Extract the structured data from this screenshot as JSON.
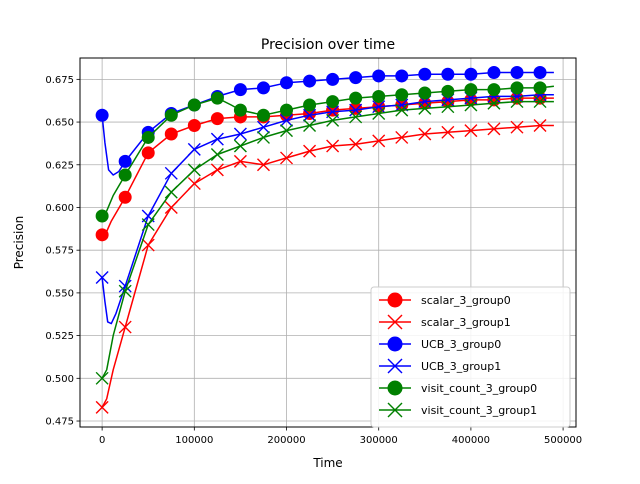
{
  "chart_data": {
    "type": "line",
    "title": "Precision over time",
    "xlabel": "Time",
    "ylabel": "Precision",
    "xlim": [
      -24000,
      514000
    ],
    "ylim": [
      0.4715,
      0.6875
    ],
    "xticks": [
      0,
      100000,
      200000,
      300000,
      400000,
      500000
    ],
    "xtick_labels": [
      "0",
      "100000",
      "200000",
      "300000",
      "400000",
      "500000"
    ],
    "yticks": [
      0.475,
      0.5,
      0.525,
      0.55,
      0.575,
      0.6,
      0.625,
      0.65,
      0.675
    ],
    "ytick_labels": [
      "0.475",
      "0.500",
      "0.525",
      "0.550",
      "0.575",
      "0.600",
      "0.625",
      "0.650",
      "0.675"
    ],
    "grid": true,
    "legend_position": "lower-right",
    "series": [
      {
        "name": "scalar_3_group0",
        "color": "#ff0000",
        "marker": "circle",
        "line": [
          [
            0,
            0.584
          ],
          [
            5000,
            0.586
          ],
          [
            10000,
            0.592
          ],
          [
            25000,
            0.606
          ],
          [
            50000,
            0.632
          ],
          [
            75000,
            0.643
          ],
          [
            100000,
            0.648
          ],
          [
            125000,
            0.652
          ],
          [
            150000,
            0.653
          ],
          [
            175000,
            0.653
          ],
          [
            200000,
            0.654
          ],
          [
            225000,
            0.655
          ],
          [
            250000,
            0.657
          ],
          [
            275000,
            0.658
          ],
          [
            300000,
            0.659
          ],
          [
            325000,
            0.66
          ],
          [
            350000,
            0.661
          ],
          [
            375000,
            0.662
          ],
          [
            400000,
            0.663
          ],
          [
            425000,
            0.663
          ],
          [
            450000,
            0.664
          ],
          [
            475000,
            0.664
          ],
          [
            490000,
            0.664
          ]
        ],
        "markers": [
          [
            0,
            0.584
          ],
          [
            25000,
            0.606
          ],
          [
            50000,
            0.632
          ],
          [
            75000,
            0.643
          ],
          [
            100000,
            0.648
          ],
          [
            125000,
            0.652
          ],
          [
            150000,
            0.653
          ],
          [
            175000,
            0.653
          ],
          [
            200000,
            0.654
          ],
          [
            225000,
            0.655
          ],
          [
            250000,
            0.657
          ],
          [
            275000,
            0.658
          ],
          [
            300000,
            0.659
          ],
          [
            325000,
            0.66
          ],
          [
            350000,
            0.661
          ],
          [
            375000,
            0.662
          ],
          [
            400000,
            0.663
          ],
          [
            425000,
            0.663
          ],
          [
            450000,
            0.664
          ],
          [
            475000,
            0.664
          ]
        ]
      },
      {
        "name": "scalar_3_group1",
        "color": "#ff0000",
        "marker": "x",
        "line": [
          [
            0,
            0.483
          ],
          [
            5000,
            0.488
          ],
          [
            12000,
            0.505
          ],
          [
            25000,
            0.53
          ],
          [
            50000,
            0.578
          ],
          [
            75000,
            0.6
          ],
          [
            100000,
            0.614
          ],
          [
            125000,
            0.622
          ],
          [
            150000,
            0.627
          ],
          [
            175000,
            0.625
          ],
          [
            200000,
            0.629
          ],
          [
            225000,
            0.633
          ],
          [
            250000,
            0.636
          ],
          [
            275000,
            0.637
          ],
          [
            300000,
            0.639
          ],
          [
            325000,
            0.641
          ],
          [
            350000,
            0.643
          ],
          [
            375000,
            0.644
          ],
          [
            400000,
            0.645
          ],
          [
            425000,
            0.646
          ],
          [
            450000,
            0.647
          ],
          [
            475000,
            0.648
          ],
          [
            490000,
            0.648
          ]
        ],
        "markers": [
          [
            0,
            0.483
          ],
          [
            25000,
            0.53
          ],
          [
            50000,
            0.578
          ],
          [
            75000,
            0.6
          ],
          [
            100000,
            0.614
          ],
          [
            125000,
            0.622
          ],
          [
            150000,
            0.627
          ],
          [
            175000,
            0.625
          ],
          [
            200000,
            0.629
          ],
          [
            225000,
            0.633
          ],
          [
            250000,
            0.636
          ],
          [
            275000,
            0.637
          ],
          [
            300000,
            0.639
          ],
          [
            325000,
            0.641
          ],
          [
            350000,
            0.643
          ],
          [
            375000,
            0.644
          ],
          [
            400000,
            0.645
          ],
          [
            425000,
            0.646
          ],
          [
            450000,
            0.647
          ],
          [
            475000,
            0.648
          ]
        ]
      },
      {
        "name": "UCB_3_group0",
        "color": "#0000ff",
        "marker": "circle",
        "line": [
          [
            0,
            0.654
          ],
          [
            3000,
            0.638
          ],
          [
            7000,
            0.622
          ],
          [
            12000,
            0.619
          ],
          [
            18000,
            0.621
          ],
          [
            25000,
            0.627
          ],
          [
            50000,
            0.644
          ],
          [
            75000,
            0.655
          ],
          [
            100000,
            0.66
          ],
          [
            125000,
            0.665
          ],
          [
            150000,
            0.669
          ],
          [
            175000,
            0.67
          ],
          [
            200000,
            0.673
          ],
          [
            225000,
            0.674
          ],
          [
            250000,
            0.675
          ],
          [
            275000,
            0.676
          ],
          [
            300000,
            0.677
          ],
          [
            325000,
            0.677
          ],
          [
            350000,
            0.678
          ],
          [
            375000,
            0.678
          ],
          [
            400000,
            0.678
          ],
          [
            425000,
            0.679
          ],
          [
            450000,
            0.679
          ],
          [
            475000,
            0.679
          ],
          [
            490000,
            0.679
          ]
        ],
        "markers": [
          [
            0,
            0.654
          ],
          [
            25000,
            0.627
          ],
          [
            50000,
            0.644
          ],
          [
            75000,
            0.655
          ],
          [
            100000,
            0.66
          ],
          [
            125000,
            0.665
          ],
          [
            150000,
            0.669
          ],
          [
            175000,
            0.67
          ],
          [
            200000,
            0.673
          ],
          [
            225000,
            0.674
          ],
          [
            250000,
            0.675
          ],
          [
            275000,
            0.676
          ],
          [
            300000,
            0.677
          ],
          [
            325000,
            0.677
          ],
          [
            350000,
            0.678
          ],
          [
            375000,
            0.678
          ],
          [
            400000,
            0.678
          ],
          [
            425000,
            0.679
          ],
          [
            450000,
            0.679
          ],
          [
            475000,
            0.679
          ]
        ]
      },
      {
        "name": "UCB_3_group1",
        "color": "#0000ff",
        "marker": "x",
        "line": [
          [
            0,
            0.559
          ],
          [
            3000,
            0.545
          ],
          [
            6000,
            0.533
          ],
          [
            10000,
            0.532
          ],
          [
            15000,
            0.538
          ],
          [
            25000,
            0.554
          ],
          [
            50000,
            0.595
          ],
          [
            75000,
            0.62
          ],
          [
            100000,
            0.634
          ],
          [
            125000,
            0.64
          ],
          [
            150000,
            0.643
          ],
          [
            175000,
            0.647
          ],
          [
            200000,
            0.651
          ],
          [
            225000,
            0.654
          ],
          [
            250000,
            0.656
          ],
          [
            275000,
            0.657
          ],
          [
            300000,
            0.659
          ],
          [
            325000,
            0.66
          ],
          [
            350000,
            0.662
          ],
          [
            375000,
            0.663
          ],
          [
            400000,
            0.664
          ],
          [
            425000,
            0.665
          ],
          [
            450000,
            0.665
          ],
          [
            475000,
            0.666
          ],
          [
            490000,
            0.666
          ]
        ],
        "markers": [
          [
            0,
            0.559
          ],
          [
            25000,
            0.554
          ],
          [
            50000,
            0.595
          ],
          [
            75000,
            0.62
          ],
          [
            100000,
            0.634
          ],
          [
            125000,
            0.64
          ],
          [
            150000,
            0.643
          ],
          [
            175000,
            0.647
          ],
          [
            200000,
            0.651
          ],
          [
            225000,
            0.654
          ],
          [
            250000,
            0.656
          ],
          [
            275000,
            0.657
          ],
          [
            300000,
            0.659
          ],
          [
            325000,
            0.66
          ],
          [
            350000,
            0.662
          ],
          [
            375000,
            0.663
          ],
          [
            400000,
            0.664
          ],
          [
            425000,
            0.665
          ],
          [
            450000,
            0.665
          ],
          [
            475000,
            0.666
          ]
        ]
      },
      {
        "name": "visit_count_3_group0",
        "color": "#008000",
        "marker": "circle",
        "line": [
          [
            0,
            0.595
          ],
          [
            5000,
            0.598
          ],
          [
            12000,
            0.607
          ],
          [
            25000,
            0.619
          ],
          [
            50000,
            0.641
          ],
          [
            75000,
            0.654
          ],
          [
            100000,
            0.66
          ],
          [
            125000,
            0.664
          ],
          [
            140000,
            0.66
          ],
          [
            150000,
            0.657
          ],
          [
            175000,
            0.654
          ],
          [
            200000,
            0.657
          ],
          [
            225000,
            0.66
          ],
          [
            250000,
            0.662
          ],
          [
            275000,
            0.664
          ],
          [
            300000,
            0.665
          ],
          [
            325000,
            0.666
          ],
          [
            350000,
            0.667
          ],
          [
            375000,
            0.668
          ],
          [
            400000,
            0.669
          ],
          [
            425000,
            0.669
          ],
          [
            450000,
            0.67
          ],
          [
            475000,
            0.67
          ],
          [
            490000,
            0.671
          ]
        ],
        "markers": [
          [
            0,
            0.595
          ],
          [
            25000,
            0.619
          ],
          [
            50000,
            0.641
          ],
          [
            75000,
            0.654
          ],
          [
            100000,
            0.66
          ],
          [
            125000,
            0.664
          ],
          [
            150000,
            0.657
          ],
          [
            175000,
            0.654
          ],
          [
            200000,
            0.657
          ],
          [
            225000,
            0.66
          ],
          [
            250000,
            0.662
          ],
          [
            275000,
            0.664
          ],
          [
            300000,
            0.665
          ],
          [
            325000,
            0.666
          ],
          [
            350000,
            0.667
          ],
          [
            375000,
            0.668
          ],
          [
            400000,
            0.669
          ],
          [
            425000,
            0.669
          ],
          [
            450000,
            0.67
          ],
          [
            475000,
            0.67
          ]
        ]
      },
      {
        "name": "visit_count_3_group1",
        "color": "#008000",
        "marker": "x",
        "line": [
          [
            0,
            0.5
          ],
          [
            5000,
            0.505
          ],
          [
            12000,
            0.525
          ],
          [
            25000,
            0.551
          ],
          [
            50000,
            0.59
          ],
          [
            75000,
            0.609
          ],
          [
            100000,
            0.622
          ],
          [
            125000,
            0.631
          ],
          [
            150000,
            0.636
          ],
          [
            175000,
            0.641
          ],
          [
            200000,
            0.645
          ],
          [
            225000,
            0.648
          ],
          [
            250000,
            0.651
          ],
          [
            275000,
            0.653
          ],
          [
            300000,
            0.655
          ],
          [
            325000,
            0.657
          ],
          [
            350000,
            0.658
          ],
          [
            375000,
            0.659
          ],
          [
            400000,
            0.66
          ],
          [
            425000,
            0.661
          ],
          [
            450000,
            0.662
          ],
          [
            475000,
            0.662
          ],
          [
            490000,
            0.662
          ]
        ],
        "markers": [
          [
            0,
            0.5
          ],
          [
            25000,
            0.551
          ],
          [
            50000,
            0.59
          ],
          [
            75000,
            0.609
          ],
          [
            100000,
            0.622
          ],
          [
            125000,
            0.631
          ],
          [
            150000,
            0.636
          ],
          [
            175000,
            0.641
          ],
          [
            200000,
            0.645
          ],
          [
            225000,
            0.648
          ],
          [
            250000,
            0.651
          ],
          [
            275000,
            0.653
          ],
          [
            300000,
            0.655
          ],
          [
            325000,
            0.657
          ],
          [
            350000,
            0.658
          ],
          [
            375000,
            0.659
          ],
          [
            400000,
            0.66
          ],
          [
            425000,
            0.661
          ],
          [
            450000,
            0.662
          ],
          [
            475000,
            0.662
          ]
        ]
      }
    ]
  }
}
